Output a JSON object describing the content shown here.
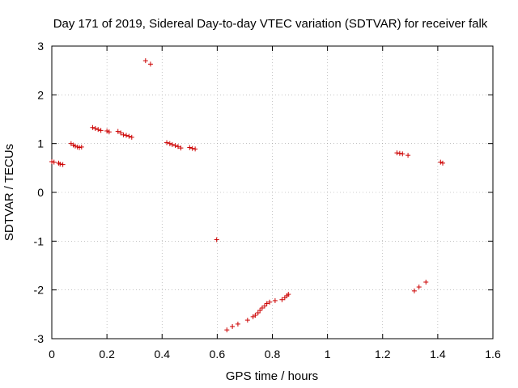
{
  "chart_data": {
    "type": "scatter",
    "title": "Day 171 of 2019, Sidereal Day-to-day VTEC variation (SDTVAR) for receiver falk",
    "xlabel": "GPS time / hours",
    "ylabel": "SDTVAR / TECUs",
    "xlim": [
      0,
      1.6
    ],
    "ylim": [
      -3,
      3
    ],
    "xticks": [
      0,
      0.2,
      0.4,
      0.6,
      0.8,
      1,
      1.2,
      1.4,
      1.6
    ],
    "xtick_labels": [
      "0",
      "0.2",
      "0.4",
      "0.6",
      "0.8",
      "1",
      "1.2",
      "1.4",
      "1.6"
    ],
    "yticks": [
      -3,
      -2,
      -1,
      0,
      1,
      2,
      3
    ],
    "ytick_labels": [
      "-3",
      "-2",
      "-1",
      "0",
      "1",
      "2",
      "3"
    ],
    "grid": true,
    "marker": "+",
    "series": [
      {
        "name": "SDTVAR",
        "color": "#cc0000",
        "points": [
          [
            0.0,
            0.63
          ],
          [
            0.008,
            0.62
          ],
          [
            0.025,
            0.6
          ],
          [
            0.03,
            0.58
          ],
          [
            0.04,
            0.57
          ],
          [
            0.07,
            1.0
          ],
          [
            0.078,
            0.97
          ],
          [
            0.085,
            0.95
          ],
          [
            0.093,
            0.93
          ],
          [
            0.1,
            0.92
          ],
          [
            0.108,
            0.93
          ],
          [
            0.148,
            1.33
          ],
          [
            0.158,
            1.31
          ],
          [
            0.168,
            1.29
          ],
          [
            0.178,
            1.27
          ],
          [
            0.2,
            1.26
          ],
          [
            0.208,
            1.24
          ],
          [
            0.24,
            1.25
          ],
          [
            0.25,
            1.22
          ],
          [
            0.26,
            1.18
          ],
          [
            0.27,
            1.17
          ],
          [
            0.28,
            1.15
          ],
          [
            0.29,
            1.13
          ],
          [
            0.34,
            2.7
          ],
          [
            0.358,
            2.63
          ],
          [
            0.417,
            1.02
          ],
          [
            0.428,
            1.0
          ],
          [
            0.437,
            0.98
          ],
          [
            0.448,
            0.96
          ],
          [
            0.458,
            0.94
          ],
          [
            0.468,
            0.91
          ],
          [
            0.5,
            0.92
          ],
          [
            0.51,
            0.9
          ],
          [
            0.52,
            0.89
          ],
          [
            0.598,
            -0.97
          ],
          [
            0.635,
            -2.82
          ],
          [
            0.655,
            -2.75
          ],
          [
            0.675,
            -2.7
          ],
          [
            0.71,
            -2.62
          ],
          [
            0.73,
            -2.55
          ],
          [
            0.738,
            -2.52
          ],
          [
            0.748,
            -2.47
          ],
          [
            0.755,
            -2.42
          ],
          [
            0.763,
            -2.37
          ],
          [
            0.772,
            -2.33
          ],
          [
            0.78,
            -2.28
          ],
          [
            0.79,
            -2.25
          ],
          [
            0.81,
            -2.22
          ],
          [
            0.835,
            -2.2
          ],
          [
            0.845,
            -2.16
          ],
          [
            0.853,
            -2.12
          ],
          [
            0.858,
            -2.09
          ],
          [
            1.252,
            0.81
          ],
          [
            1.262,
            0.8
          ],
          [
            1.272,
            0.79
          ],
          [
            1.292,
            0.76
          ],
          [
            1.315,
            -2.02
          ],
          [
            1.332,
            -1.94
          ],
          [
            1.357,
            -1.84
          ],
          [
            1.41,
            0.62
          ],
          [
            1.418,
            0.6
          ]
        ]
      }
    ]
  }
}
